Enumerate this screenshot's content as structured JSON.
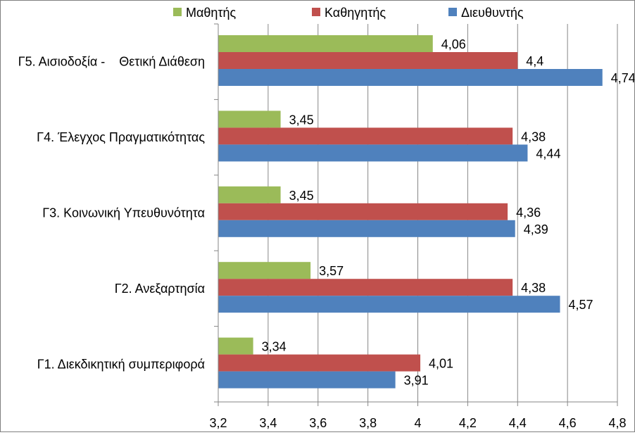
{
  "chart_data": {
    "type": "bar",
    "orientation": "horizontal",
    "categories": [
      "Γ5. Αισιοδοξία -    Θετική Διάθεση",
      "Γ4. Έλεγχος Πραγματικότητας",
      "Γ3. Κοινωνική Υπευθυνότητα",
      "Γ2. Ανεξαρτησία",
      "Γ1. Διεκδικητική συμπεριφορά"
    ],
    "series": [
      {
        "name": "Μαθητής",
        "color": "#9bbb59",
        "values": [
          4.06,
          3.45,
          3.45,
          3.57,
          3.34
        ],
        "labels": [
          "4,06",
          "3,45",
          "3,45",
          "3,57",
          "3,34"
        ]
      },
      {
        "name": "Καθηγητής",
        "color": "#c0504d",
        "values": [
          4.4,
          4.38,
          4.36,
          4.38,
          4.01
        ],
        "labels": [
          "4,4",
          "4,38",
          "4,36",
          "4,38",
          "4,01"
        ]
      },
      {
        "name": "Διευθυντής",
        "color": "#4f81bd",
        "values": [
          4.74,
          4.44,
          4.39,
          4.57,
          3.91
        ],
        "labels": [
          "4,74",
          "4,44",
          "4,39",
          "4,57",
          "3,91"
        ]
      }
    ],
    "xlim": [
      3.2,
      4.8
    ],
    "ticks": [
      3.2,
      3.4,
      3.6,
      3.8,
      4.0,
      4.2,
      4.4,
      4.6,
      4.8
    ],
    "tick_labels": [
      "3,2",
      "3,4",
      "3,6",
      "3,8",
      "4",
      "4,2",
      "4,4",
      "4,6",
      "4,8"
    ],
    "legend_position": "top",
    "grid": true,
    "gridline_color": "#868686"
  }
}
